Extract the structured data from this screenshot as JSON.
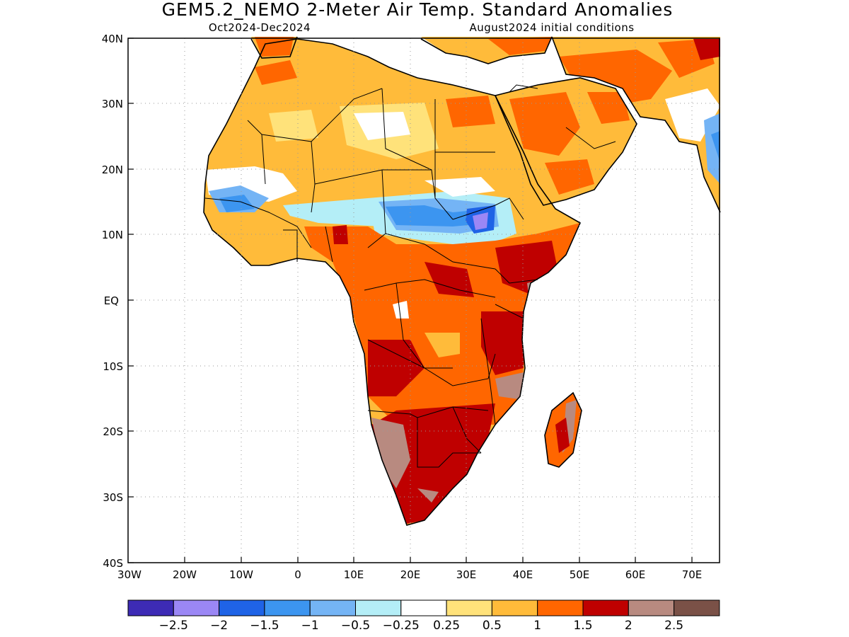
{
  "title": "GEM5.2_NEMO 2-Meter Air Temp. Standard Anomalies",
  "subtitle_left": "Oct2024-Dec2024",
  "subtitle_right": "August2024 initial conditions",
  "lat_labels": [
    "40N",
    "30N",
    "20N",
    "10N",
    "EQ",
    "10S",
    "20S",
    "30S",
    "40S"
  ],
  "lon_labels": [
    "30W",
    "20W",
    "10W",
    "0",
    "10E",
    "20E",
    "30E",
    "40E",
    "50E",
    "60E",
    "70E"
  ],
  "colorbar": {
    "colors": [
      "#3d2bb5",
      "#9b87f5",
      "#1f63e6",
      "#3c95f0",
      "#74b4f5",
      "#b4eef7",
      "#ffffff",
      "#ffe27a",
      "#ffbb3a",
      "#ff6600",
      "#bf0000",
      "#b88a80",
      "#7a5147"
    ],
    "labels": [
      "-2.5",
      "-2",
      "-1.5",
      "-1",
      "-0.5",
      "-0.25",
      "0.25",
      "0.5",
      "1",
      "1.5",
      "2",
      "2.5"
    ]
  }
}
